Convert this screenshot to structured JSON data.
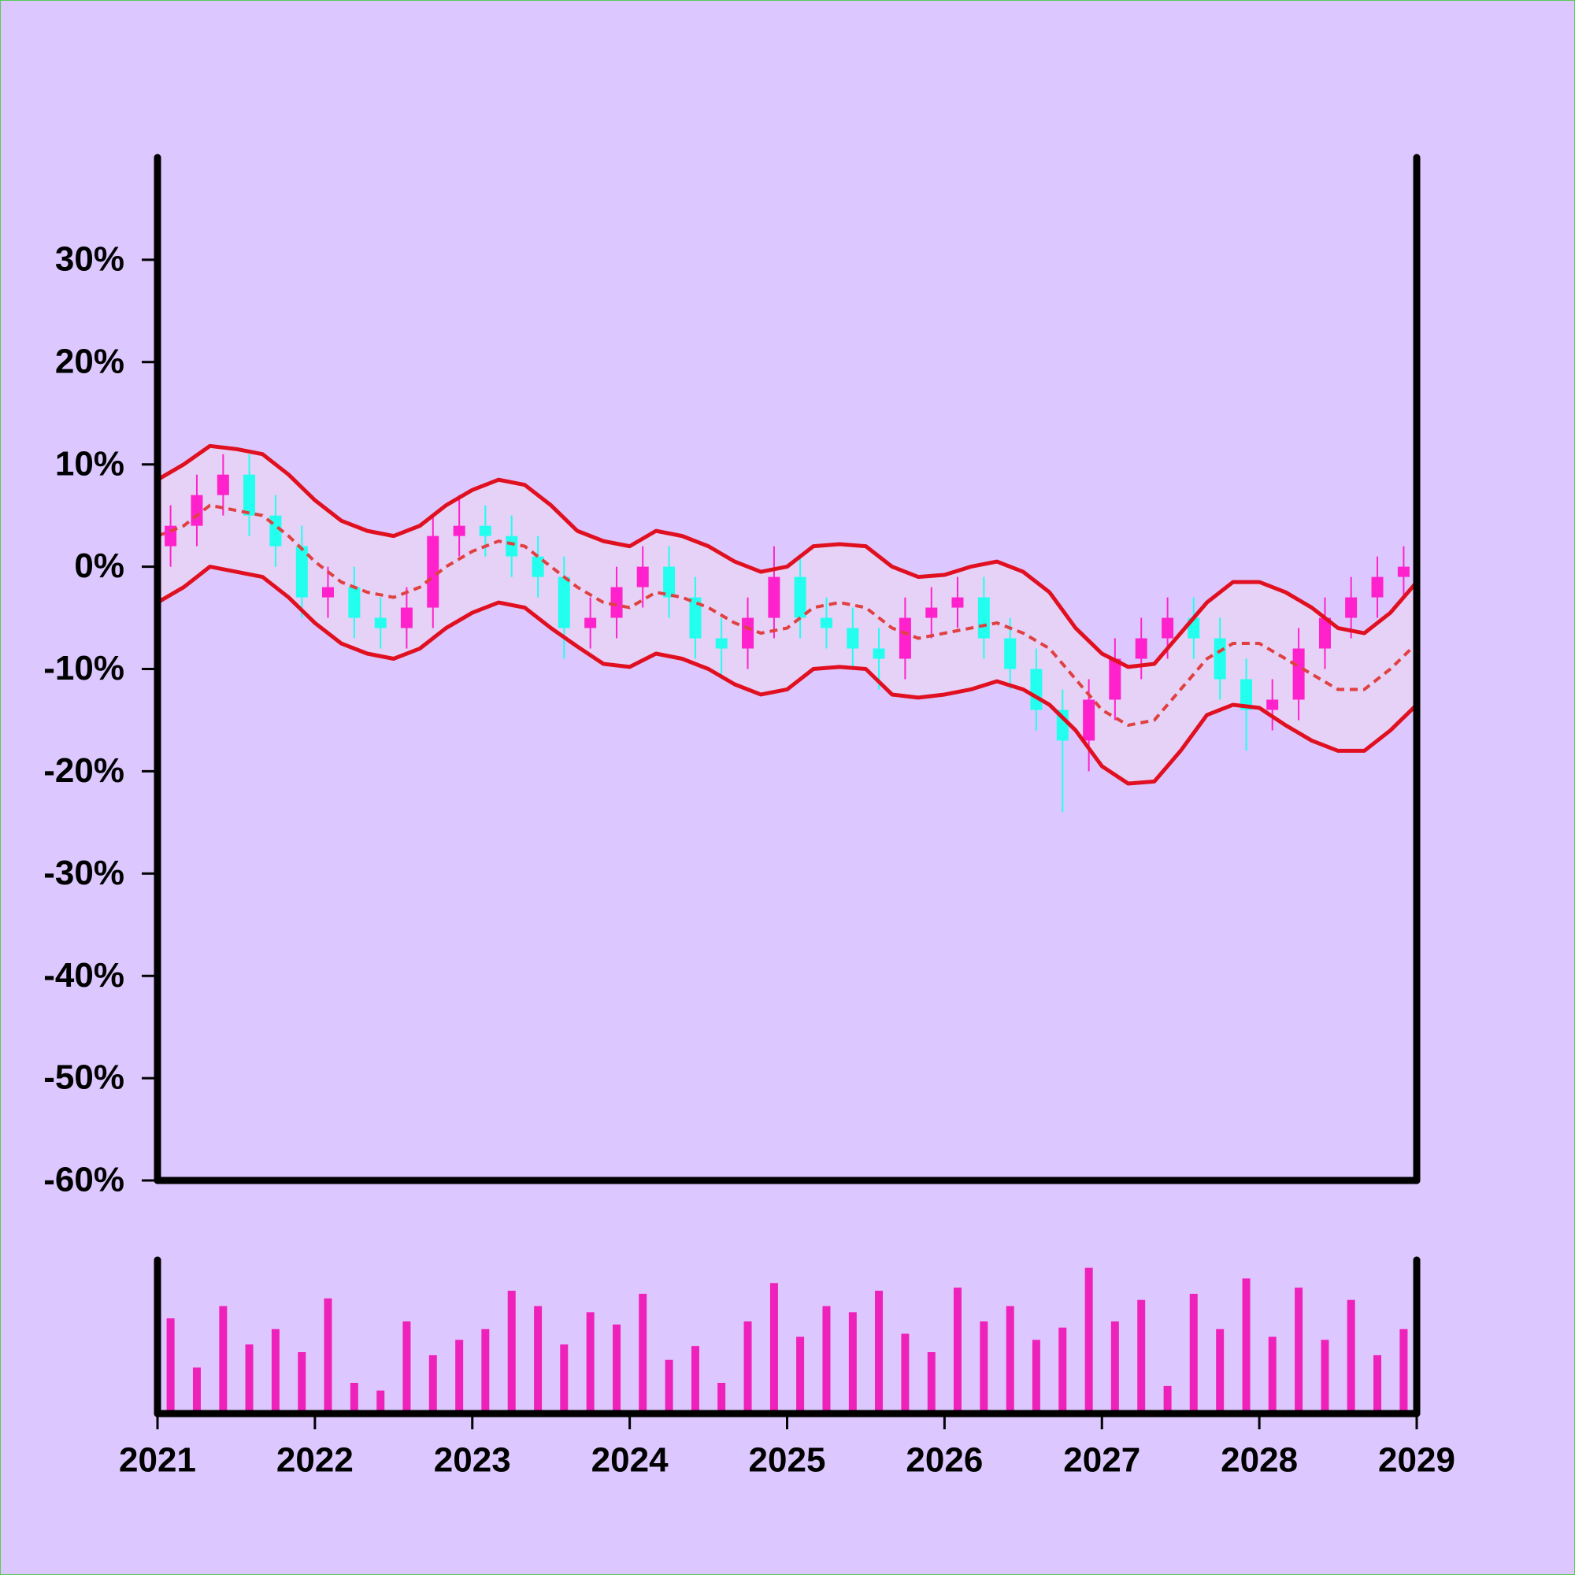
{
  "chart_data": {
    "type": "candlestick",
    "xlim": [
      2021,
      2029
    ],
    "xticks": [
      2021,
      2022,
      2023,
      2024,
      2025,
      2026,
      2027,
      2028,
      2029
    ],
    "ylim": [
      -60,
      40
    ],
    "yticks": [
      {
        "value": -60,
        "label": "-60%"
      },
      {
        "value": -50,
        "label": "-50%"
      },
      {
        "value": -40,
        "label": "-40%"
      },
      {
        "value": -30,
        "label": "-30%"
      },
      {
        "value": -20,
        "label": "-20%"
      },
      {
        "value": -10,
        "label": "-10%"
      },
      {
        "value": 0,
        "label": "0%"
      },
      {
        "value": 10,
        "label": "10%"
      },
      {
        "value": 20,
        "label": "20%"
      },
      {
        "value": 30,
        "label": "30%"
      }
    ],
    "up_color": "#ff22cc",
    "down_color": "#22ffee",
    "x": [
      2021.083,
      2021.25,
      2021.417,
      2021.583,
      2021.75,
      2021.917,
      2022.083,
      2022.25,
      2022.417,
      2022.583,
      2022.75,
      2022.917,
      2023.083,
      2023.25,
      2023.417,
      2023.583,
      2023.75,
      2023.917,
      2024.083,
      2024.25,
      2024.417,
      2024.583,
      2024.75,
      2024.917,
      2025.083,
      2025.25,
      2025.417,
      2025.583,
      2025.75,
      2025.917,
      2026.083,
      2026.25,
      2026.417,
      2026.583,
      2026.75,
      2026.917,
      2027.083,
      2027.25,
      2027.417,
      2027.583,
      2027.75,
      2027.917,
      2028.083,
      2028.25,
      2028.417,
      2028.583,
      2028.75,
      2028.917
    ],
    "open": [
      2,
      4,
      7,
      9,
      5,
      2,
      -3,
      -2,
      -5,
      -6,
      -4,
      3,
      4,
      3,
      1,
      -1,
      -6,
      -5,
      -2,
      0,
      -3,
      -7,
      -8,
      -5,
      -1,
      -5,
      -6,
      -8,
      -9,
      -5,
      -4,
      -3,
      -7,
      -10,
      -14,
      -17,
      -13,
      -9,
      -7,
      -5,
      -7,
      -11,
      -14,
      -13,
      -8,
      -5,
      -3,
      -1
    ],
    "high": [
      6,
      9,
      11,
      11,
      7,
      4,
      0,
      0,
      -3,
      -2,
      5,
      7,
      6,
      5,
      3,
      1,
      -3,
      0,
      2,
      2,
      -1,
      -5,
      -3,
      2,
      1,
      -3,
      -4,
      -6,
      -3,
      -2,
      -1,
      -1,
      -5,
      -8,
      -12,
      -11,
      -7,
      -5,
      -3,
      -3,
      -5,
      -9,
      -11,
      -6,
      -3,
      -1,
      1,
      2
    ],
    "low": [
      0,
      2,
      5,
      3,
      0,
      -5,
      -5,
      -7,
      -8,
      -8,
      -6,
      1,
      1,
      -1,
      -3,
      -9,
      -8,
      -7,
      -4,
      -5,
      -9,
      -11,
      -10,
      -7,
      -7,
      -8,
      -10,
      -12,
      -11,
      -7,
      -6,
      -9,
      -12,
      -16,
      -24,
      -20,
      -15,
      -11,
      -9,
      -9,
      -13,
      -18,
      -16,
      -15,
      -10,
      -7,
      -5,
      -3
    ],
    "close": [
      4,
      7,
      9,
      5,
      2,
      -3,
      -2,
      -5,
      -6,
      -4,
      3,
      4,
      3,
      1,
      -1,
      -6,
      -5,
      -2,
      0,
      -3,
      -7,
      -8,
      -5,
      -1,
      -5,
      -6,
      -8,
      -9,
      -5,
      -4,
      -3,
      -7,
      -10,
      -14,
      -17,
      -13,
      -9,
      -7,
      -5,
      -7,
      -11,
      -14,
      -13,
      -8,
      -5,
      -3,
      -1,
      0
    ],
    "band_x": [
      2021,
      2021.167,
      2021.333,
      2021.5,
      2021.667,
      2021.833,
      2022,
      2022.167,
      2022.333,
      2022.5,
      2022.667,
      2022.833,
      2023,
      2023.167,
      2023.333,
      2023.5,
      2023.667,
      2023.833,
      2024,
      2024.167,
      2024.333,
      2024.5,
      2024.667,
      2024.833,
      2025,
      2025.167,
      2025.333,
      2025.5,
      2025.667,
      2025.833,
      2026,
      2026.167,
      2026.333,
      2026.5,
      2026.667,
      2026.833,
      2027,
      2027.167,
      2027.333,
      2027.5,
      2027.667,
      2027.833,
      2028,
      2028.167,
      2028.333,
      2028.5,
      2028.667,
      2028.833,
      2029
    ],
    "band_fill": "#e8d2f6",
    "upper_band": {
      "color": "#e01020",
      "values": [
        8.5,
        10,
        11.8,
        11.5,
        11,
        9,
        6.5,
        4.5,
        3.5,
        3,
        4,
        6,
        7.5,
        8.5,
        8,
        6,
        3.5,
        2.5,
        2,
        3.5,
        3,
        2,
        0.5,
        -0.5,
        0,
        2,
        2.2,
        2,
        0,
        -1,
        -0.8,
        0,
        0.5,
        -0.5,
        -2.5,
        -6,
        -8.5,
        -9.8,
        -9.5,
        -6.5,
        -3.5,
        -1.5,
        -1.5,
        -2.5,
        -4,
        -6,
        -6.5,
        -4.5,
        -1.5
      ]
    },
    "middle_band": {
      "color": "#e04040",
      "values": [
        3,
        4,
        6,
        5.5,
        5,
        3,
        0.5,
        -1.5,
        -2.5,
        -3,
        -2,
        0,
        1.5,
        2.5,
        2,
        0,
        -2,
        -3.5,
        -4,
        -2.5,
        -3,
        -4,
        -5.5,
        -6.5,
        -6,
        -4,
        -3.5,
        -4,
        -6,
        -7,
        -6.5,
        -6,
        -5.5,
        -6.5,
        -8,
        -11,
        -14,
        -15.5,
        -15,
        -12,
        -9,
        -7.5,
        -7.5,
        -9,
        -10.5,
        -12,
        -12,
        -10,
        -7.5
      ]
    },
    "lower_band": {
      "color": "#e01020",
      "values": [
        -3.5,
        -2,
        0,
        -0.5,
        -1,
        -3,
        -5.5,
        -7.5,
        -8.5,
        -9,
        -8,
        -6,
        -4.5,
        -3.5,
        -4,
        -6,
        -7.8,
        -9.5,
        -9.8,
        -8.5,
        -9,
        -10,
        -11.5,
        -12.5,
        -12,
        -10,
        -9.8,
        -10,
        -12.5,
        -12.8,
        -12.5,
        -12,
        -11.2,
        -12,
        -13.5,
        -16,
        -19.5,
        -21.2,
        -21,
        -18,
        -14.5,
        -13.5,
        -13.8,
        -15.5,
        -17,
        -18,
        -18,
        -16,
        -13.5
      ]
    },
    "volume": {
      "color": "#ee22bb",
      "ylim": [
        0,
        100
      ],
      "values": [
        62,
        30,
        70,
        45,
        55,
        40,
        75,
        20,
        15,
        60,
        38,
        48,
        55,
        80,
        70,
        45,
        66,
        58,
        78,
        35,
        44,
        20,
        60,
        85,
        50,
        70,
        66,
        80,
        52,
        40,
        82,
        60,
        70,
        48,
        56,
        95,
        60,
        74,
        18,
        78,
        55,
        88,
        50,
        82,
        48,
        74,
        38,
        55
      ]
    }
  }
}
